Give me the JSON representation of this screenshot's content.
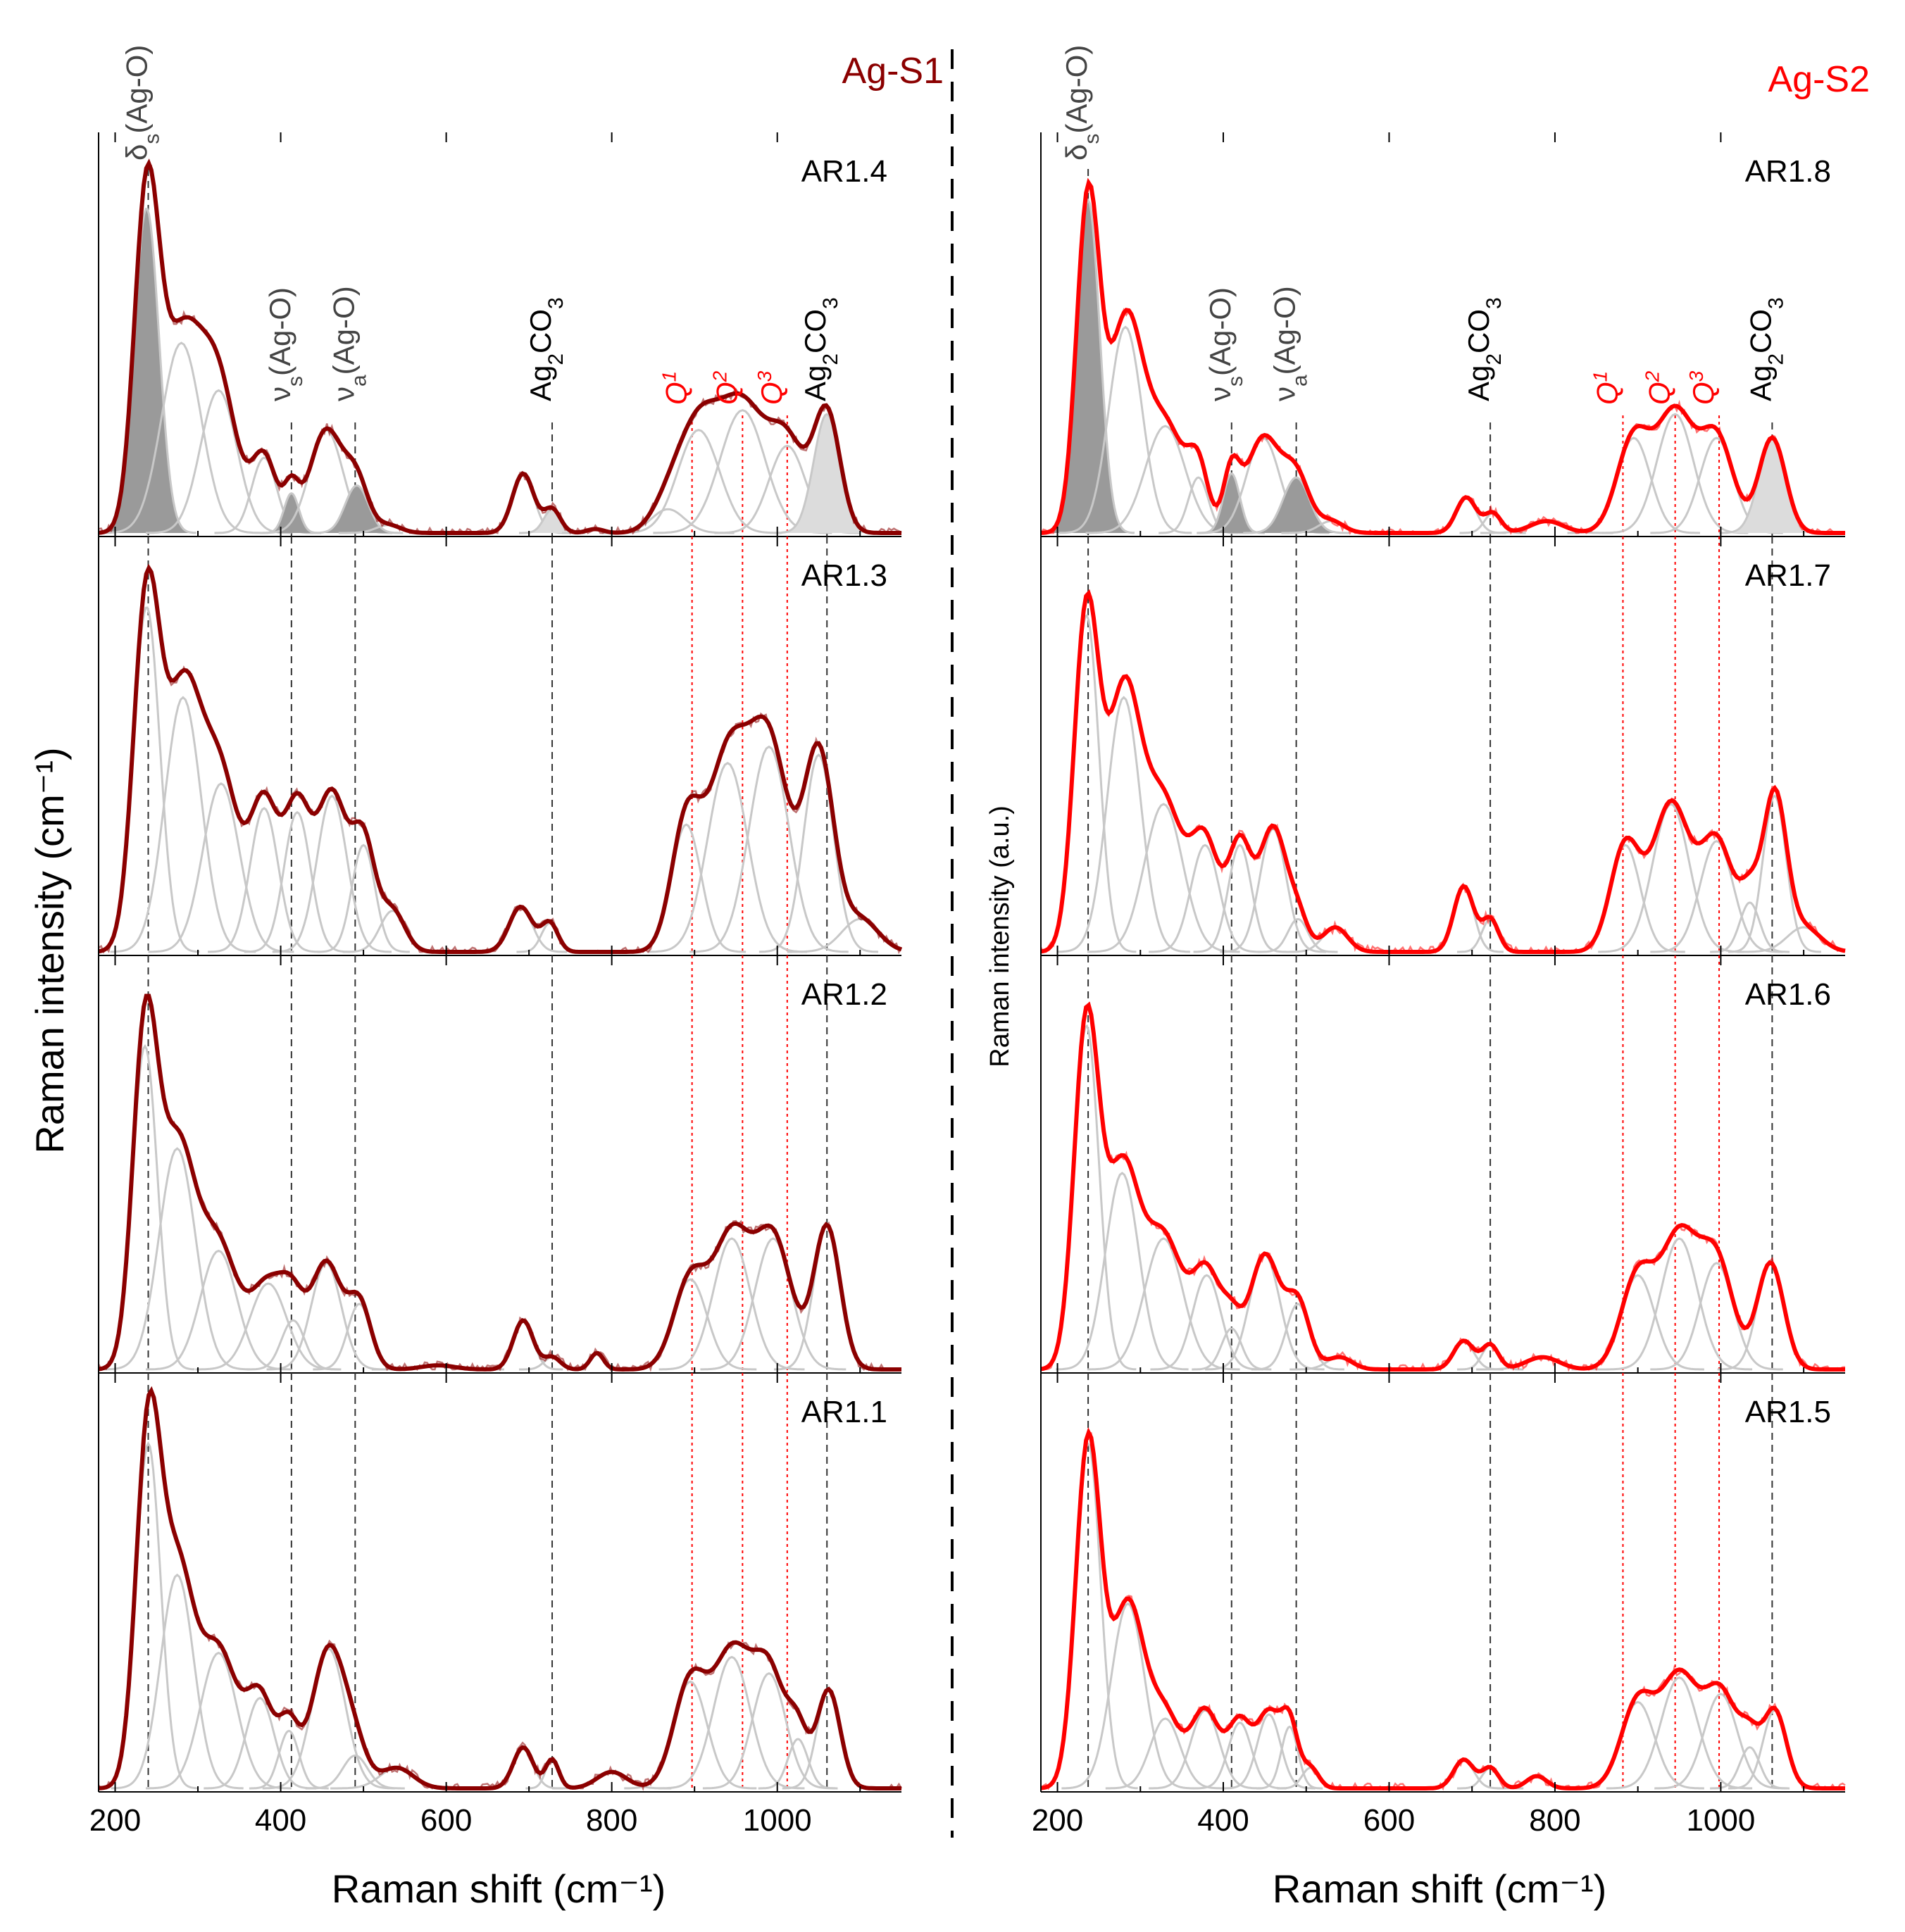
{
  "chart_data": [
    {
      "type": "line",
      "group": "Ag-S1",
      "title": "Ag-S1",
      "title_color": "#8b0000",
      "envelope_color": "#8b0000",
      "xlabel": "Raman shift (cm⁻¹)",
      "ylabel": "Raman intensity (cm⁻¹)",
      "xlim": [
        180,
        1150
      ],
      "xticks": [
        200,
        400,
        600,
        800,
        1000
      ],
      "xticklabels": [
        "200",
        "400",
        "600",
        "800",
        "1000"
      ],
      "reference_lines": [
        {
          "x": 240,
          "label": "δs(Ag-O)"
        },
        {
          "x": 413,
          "label": "νs(Ag-O)"
        },
        {
          "x": 490,
          "label": "νa(Ag-O)"
        },
        {
          "x": 728,
          "label": "Ag2CO3"
        },
        {
          "x": 1060,
          "label": "Ag2CO3"
        }
      ],
      "q_lines": [
        {
          "x": 897,
          "label": "Q1"
        },
        {
          "x": 958,
          "label": "Q2"
        },
        {
          "x": 1012,
          "label": "Q3"
        }
      ],
      "panels": [
        {
          "label": "AR1.4",
          "peaks": [
            {
              "c": 238,
              "a": 0.82,
              "w": 15,
              "shade": "dark"
            },
            {
              "c": 280,
              "a": 0.48,
              "w": 24
            },
            {
              "c": 325,
              "a": 0.36,
              "w": 22
            },
            {
              "c": 380,
              "a": 0.19,
              "w": 15
            },
            {
              "c": 413,
              "a": 0.1,
              "w": 9,
              "shade": "dark"
            },
            {
              "c": 455,
              "a": 0.26,
              "w": 20
            },
            {
              "c": 492,
              "a": 0.12,
              "w": 14,
              "shade": "dark"
            },
            {
              "c": 530,
              "a": 0.02,
              "w": 15
            },
            {
              "c": 693,
              "a": 0.15,
              "w": 13
            },
            {
              "c": 728,
              "a": 0.06,
              "w": 10,
              "shade": "light"
            },
            {
              "c": 780,
              "a": 0.01,
              "w": 10
            },
            {
              "c": 868,
              "a": 0.06,
              "w": 20
            },
            {
              "c": 905,
              "a": 0.26,
              "w": 25
            },
            {
              "c": 958,
              "a": 0.31,
              "w": 27
            },
            {
              "c": 1012,
              "a": 0.22,
              "w": 22
            },
            {
              "c": 1060,
              "a": 0.3,
              "w": 16,
              "shade": "light"
            }
          ]
        },
        {
          "label": "AR1.3",
          "peaks": [
            {
              "c": 238,
              "a": 0.84,
              "w": 16
            },
            {
              "c": 282,
              "a": 0.62,
              "w": 22
            },
            {
              "c": 328,
              "a": 0.41,
              "w": 22
            },
            {
              "c": 380,
              "a": 0.35,
              "w": 17
            },
            {
              "c": 420,
              "a": 0.34,
              "w": 16
            },
            {
              "c": 462,
              "a": 0.38,
              "w": 18
            },
            {
              "c": 500,
              "a": 0.26,
              "w": 14
            },
            {
              "c": 535,
              "a": 0.1,
              "w": 15
            },
            {
              "c": 690,
              "a": 0.11,
              "w": 14
            },
            {
              "c": 725,
              "a": 0.07,
              "w": 10
            },
            {
              "c": 890,
              "a": 0.31,
              "w": 18
            },
            {
              "c": 940,
              "a": 0.46,
              "w": 24
            },
            {
              "c": 990,
              "a": 0.5,
              "w": 24
            },
            {
              "c": 1050,
              "a": 0.48,
              "w": 18
            },
            {
              "c": 1100,
              "a": 0.08,
              "w": 22
            }
          ]
        },
        {
          "label": "AR1.2",
          "peaks": [
            {
              "c": 236,
              "a": 0.79,
              "w": 15
            },
            {
              "c": 275,
              "a": 0.54,
              "w": 22
            },
            {
              "c": 325,
              "a": 0.29,
              "w": 22
            },
            {
              "c": 385,
              "a": 0.21,
              "w": 22
            },
            {
              "c": 415,
              "a": 0.12,
              "w": 14
            },
            {
              "c": 455,
              "a": 0.26,
              "w": 18
            },
            {
              "c": 495,
              "a": 0.16,
              "w": 14
            },
            {
              "c": 590,
              "a": 0.01,
              "w": 20
            },
            {
              "c": 693,
              "a": 0.12,
              "w": 12
            },
            {
              "c": 728,
              "a": 0.03,
              "w": 10
            },
            {
              "c": 782,
              "a": 0.04,
              "w": 8
            },
            {
              "c": 895,
              "a": 0.22,
              "w": 20
            },
            {
              "c": 945,
              "a": 0.32,
              "w": 22
            },
            {
              "c": 995,
              "a": 0.32,
              "w": 22
            },
            {
              "c": 1060,
              "a": 0.35,
              "w": 16
            }
          ]
        },
        {
          "label": "AR1.1",
          "peaks": [
            {
              "c": 240,
              "a": 0.84,
              "w": 15
            },
            {
              "c": 275,
              "a": 0.52,
              "w": 20
            },
            {
              "c": 325,
              "a": 0.33,
              "w": 22
            },
            {
              "c": 375,
              "a": 0.22,
              "w": 17
            },
            {
              "c": 410,
              "a": 0.14,
              "w": 12
            },
            {
              "c": 458,
              "a": 0.34,
              "w": 20
            },
            {
              "c": 490,
              "a": 0.08,
              "w": 15
            },
            {
              "c": 540,
              "a": 0.05,
              "w": 20
            },
            {
              "c": 693,
              "a": 0.1,
              "w": 12
            },
            {
              "c": 728,
              "a": 0.07,
              "w": 8
            },
            {
              "c": 800,
              "a": 0.04,
              "w": 18
            },
            {
              "c": 895,
              "a": 0.26,
              "w": 20
            },
            {
              "c": 945,
              "a": 0.32,
              "w": 22
            },
            {
              "c": 990,
              "a": 0.28,
              "w": 20
            },
            {
              "c": 1025,
              "a": 0.12,
              "w": 12
            },
            {
              "c": 1062,
              "a": 0.24,
              "w": 14
            }
          ]
        }
      ]
    },
    {
      "type": "line",
      "group": "Ag-S2",
      "title": "Ag-S2",
      "title_color": "#ff0000",
      "envelope_color": "#ff0000",
      "xlabel": "Raman shift (cm⁻¹)",
      "ylabel": "Raman intensity (a.u.)",
      "xlim": [
        180,
        1150
      ],
      "xticks": [
        200,
        400,
        600,
        800,
        1000
      ],
      "xticklabels": [
        "200",
        "400",
        "600",
        "800",
        "1000"
      ],
      "reference_lines": [
        {
          "x": 237,
          "label": "δs(Ag-O)"
        },
        {
          "x": 410,
          "label": "νs(Ag-O)"
        },
        {
          "x": 488,
          "label": "νa(Ag-O)"
        },
        {
          "x": 722,
          "label": "Ag2CO3"
        },
        {
          "x": 1062,
          "label": "Ag2CO3"
        }
      ],
      "q_lines": [
        {
          "x": 882,
          "label": "Q1"
        },
        {
          "x": 945,
          "label": "Q2"
        },
        {
          "x": 998,
          "label": "Q3"
        }
      ],
      "panels": [
        {
          "label": "AR1.8",
          "peaks": [
            {
              "c": 237,
              "a": 0.84,
              "w": 14,
              "shade": "dark"
            },
            {
              "c": 282,
              "a": 0.52,
              "w": 20
            },
            {
              "c": 330,
              "a": 0.27,
              "w": 24
            },
            {
              "c": 370,
              "a": 0.14,
              "w": 12
            },
            {
              "c": 410,
              "a": 0.15,
              "w": 10,
              "shade": "dark"
            },
            {
              "c": 448,
              "a": 0.24,
              "w": 20
            },
            {
              "c": 488,
              "a": 0.14,
              "w": 16,
              "shade": "dark"
            },
            {
              "c": 530,
              "a": 0.03,
              "w": 15
            },
            {
              "c": 693,
              "a": 0.09,
              "w": 12
            },
            {
              "c": 725,
              "a": 0.05,
              "w": 10
            },
            {
              "c": 790,
              "a": 0.03,
              "w": 20
            },
            {
              "c": 895,
              "a": 0.24,
              "w": 20
            },
            {
              "c": 945,
              "a": 0.3,
              "w": 22
            },
            {
              "c": 995,
              "a": 0.24,
              "w": 20
            },
            {
              "c": 1062,
              "a": 0.24,
              "w": 16,
              "shade": "light"
            }
          ]
        },
        {
          "label": "AR1.7",
          "peaks": [
            {
              "c": 235,
              "a": 0.82,
              "w": 15
            },
            {
              "c": 280,
              "a": 0.62,
              "w": 20
            },
            {
              "c": 328,
              "a": 0.36,
              "w": 23
            },
            {
              "c": 378,
              "a": 0.26,
              "w": 17
            },
            {
              "c": 420,
              "a": 0.26,
              "w": 14
            },
            {
              "c": 460,
              "a": 0.3,
              "w": 16
            },
            {
              "c": 490,
              "a": 0.08,
              "w": 12
            },
            {
              "c": 535,
              "a": 0.06,
              "w": 15
            },
            {
              "c": 690,
              "a": 0.16,
              "w": 12
            },
            {
              "c": 722,
              "a": 0.08,
              "w": 10
            },
            {
              "c": 885,
              "a": 0.26,
              "w": 18
            },
            {
              "c": 940,
              "a": 0.36,
              "w": 22
            },
            {
              "c": 995,
              "a": 0.27,
              "w": 20
            },
            {
              "c": 1035,
              "a": 0.12,
              "w": 12
            },
            {
              "c": 1065,
              "a": 0.38,
              "w": 14
            },
            {
              "c": 1100,
              "a": 0.06,
              "w": 20
            }
          ]
        },
        {
          "label": "AR1.6",
          "peaks": [
            {
              "c": 235,
              "a": 0.84,
              "w": 15
            },
            {
              "c": 278,
              "a": 0.48,
              "w": 20
            },
            {
              "c": 328,
              "a": 0.32,
              "w": 23
            },
            {
              "c": 380,
              "a": 0.23,
              "w": 17
            },
            {
              "c": 410,
              "a": 0.1,
              "w": 12
            },
            {
              "c": 450,
              "a": 0.28,
              "w": 18
            },
            {
              "c": 490,
              "a": 0.16,
              "w": 14
            },
            {
              "c": 540,
              "a": 0.03,
              "w": 15
            },
            {
              "c": 690,
              "a": 0.07,
              "w": 12
            },
            {
              "c": 722,
              "a": 0.06,
              "w": 10
            },
            {
              "c": 785,
              "a": 0.03,
              "w": 20
            },
            {
              "c": 900,
              "a": 0.23,
              "w": 20
            },
            {
              "c": 950,
              "a": 0.32,
              "w": 22
            },
            {
              "c": 995,
              "a": 0.26,
              "w": 20
            },
            {
              "c": 1060,
              "a": 0.26,
              "w": 16
            }
          ]
        },
        {
          "label": "AR1.5",
          "peaks": [
            {
              "c": 237,
              "a": 0.84,
              "w": 15
            },
            {
              "c": 285,
              "a": 0.45,
              "w": 20
            },
            {
              "c": 330,
              "a": 0.17,
              "w": 18
            },
            {
              "c": 378,
              "a": 0.19,
              "w": 17
            },
            {
              "c": 420,
              "a": 0.16,
              "w": 14
            },
            {
              "c": 455,
              "a": 0.18,
              "w": 14
            },
            {
              "c": 480,
              "a": 0.15,
              "w": 10
            },
            {
              "c": 505,
              "a": 0.05,
              "w": 10
            },
            {
              "c": 690,
              "a": 0.07,
              "w": 12
            },
            {
              "c": 722,
              "a": 0.05,
              "w": 10
            },
            {
              "c": 778,
              "a": 0.03,
              "w": 12
            },
            {
              "c": 900,
              "a": 0.21,
              "w": 20
            },
            {
              "c": 950,
              "a": 0.27,
              "w": 22
            },
            {
              "c": 1000,
              "a": 0.23,
              "w": 20
            },
            {
              "c": 1035,
              "a": 0.1,
              "w": 12
            },
            {
              "c": 1065,
              "a": 0.19,
              "w": 14
            }
          ]
        }
      ]
    }
  ]
}
